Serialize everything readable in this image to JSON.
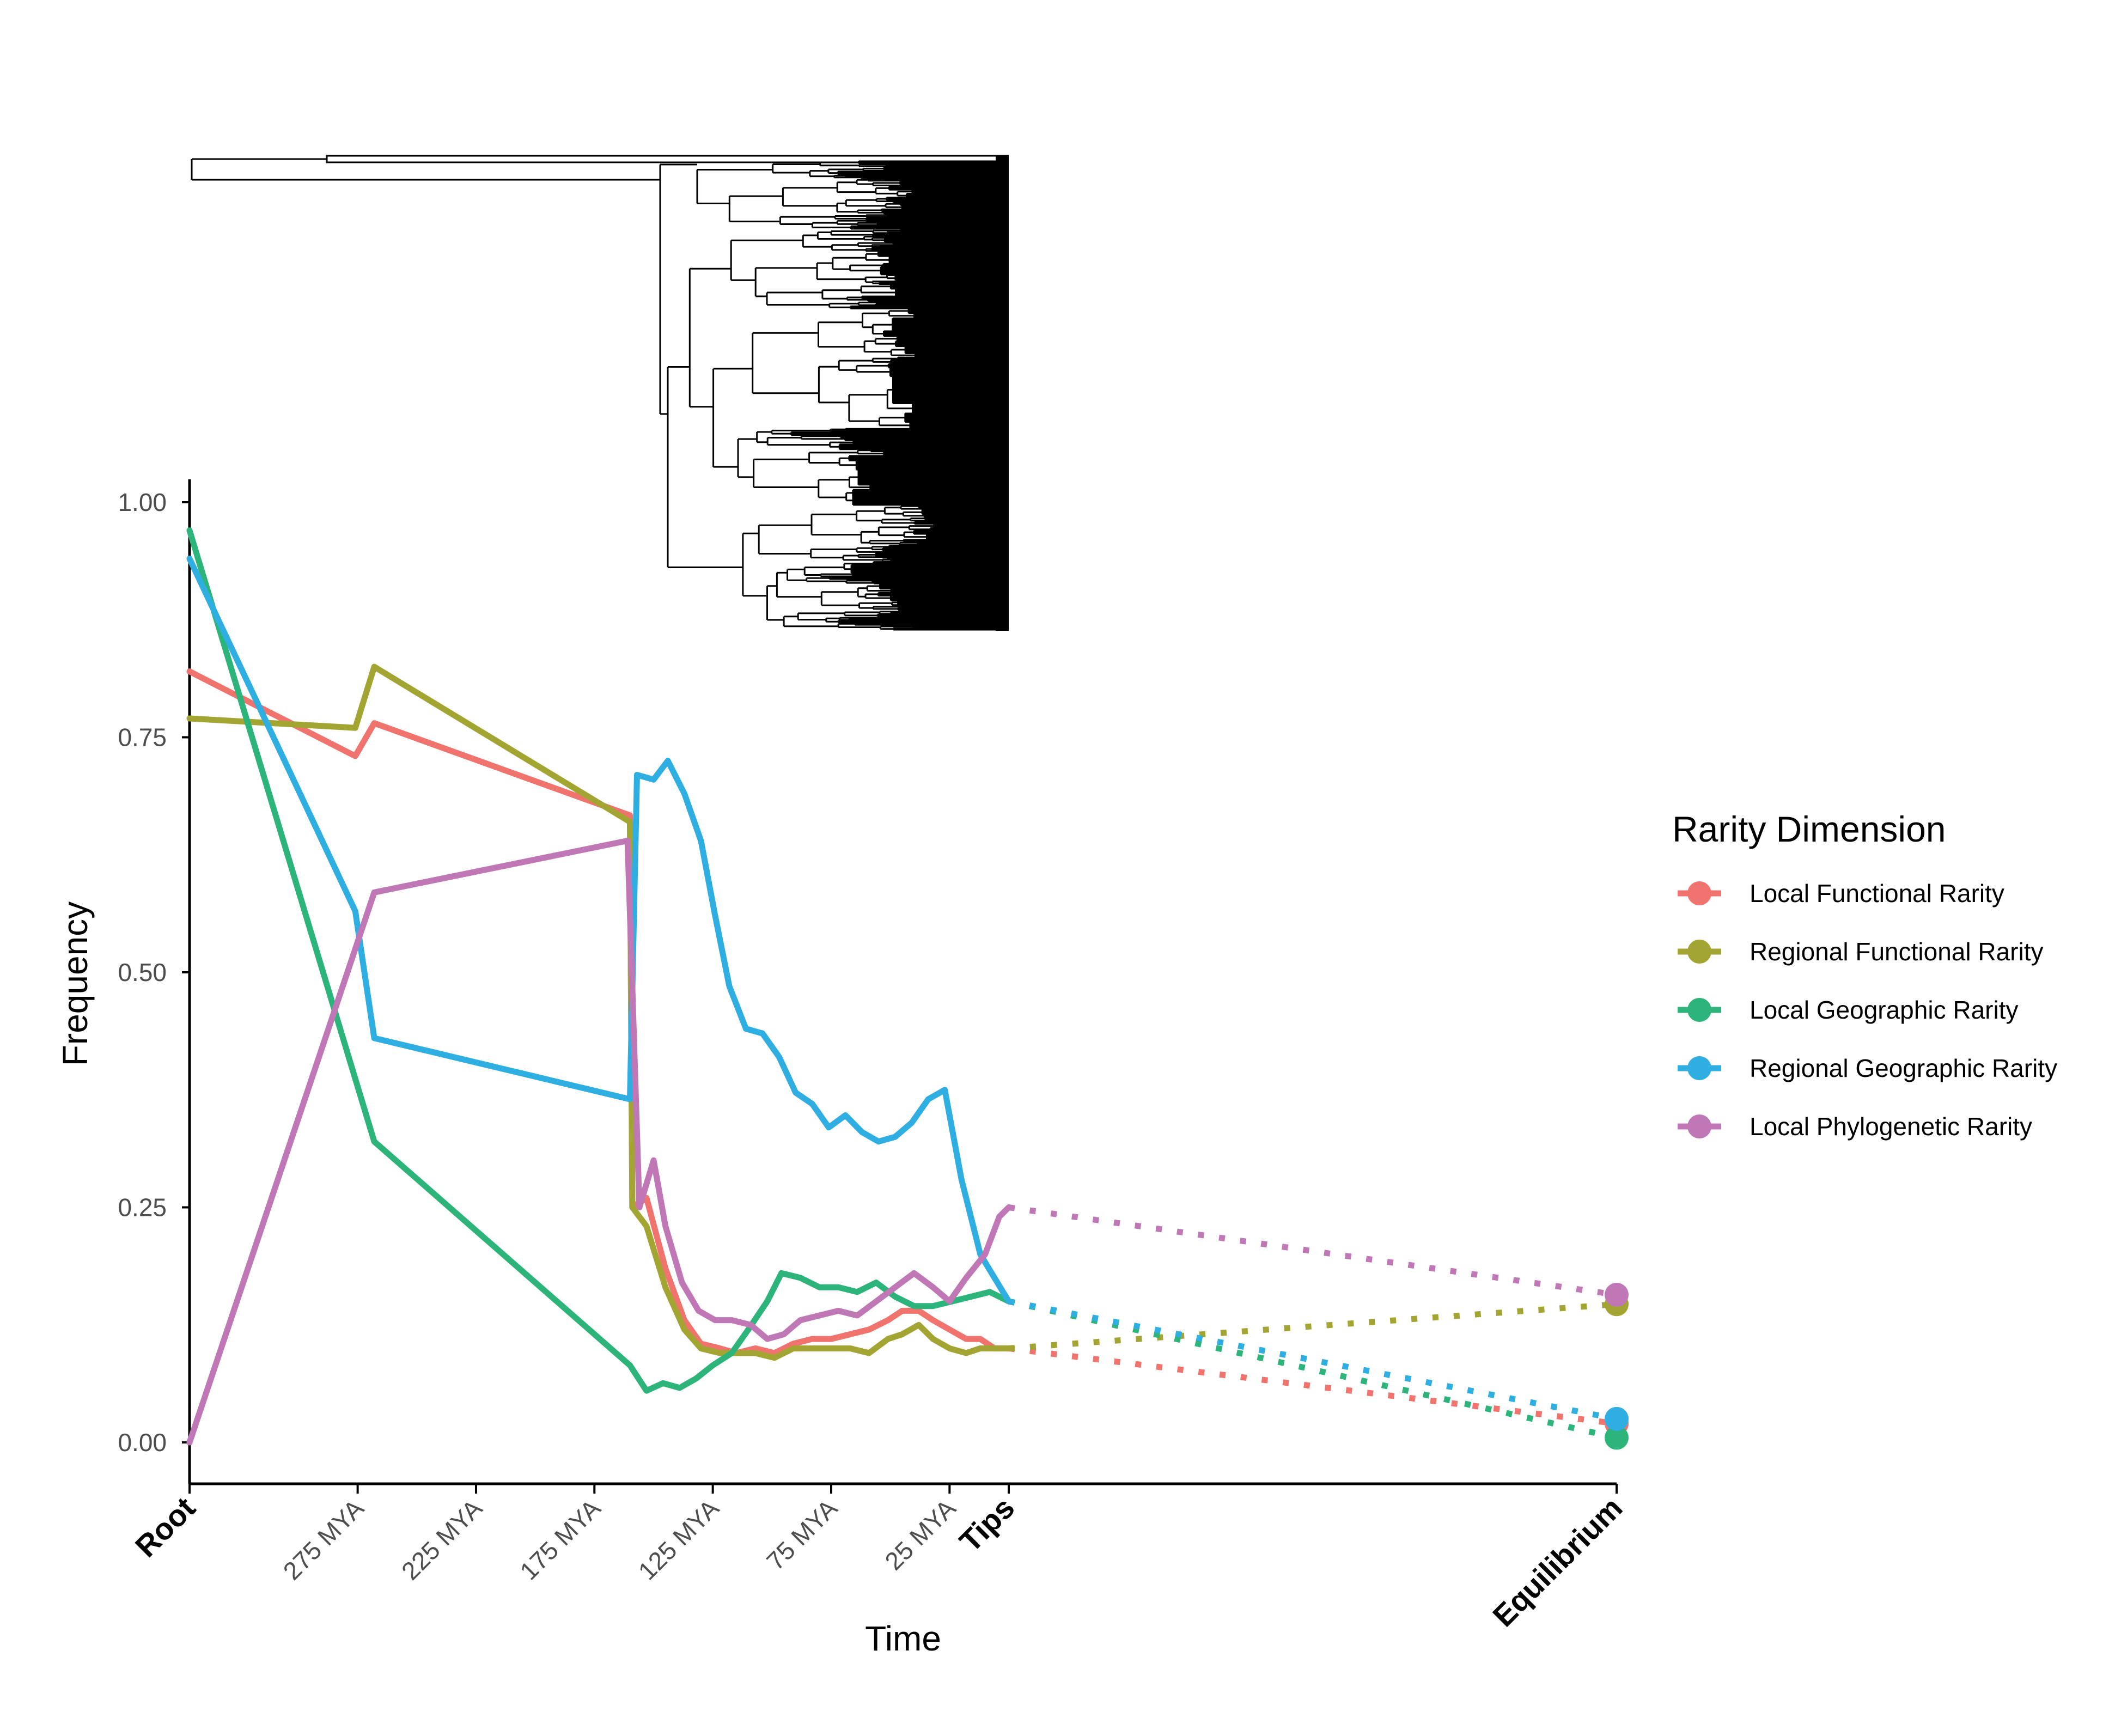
{
  "chart_data": {
    "type": "line",
    "xlabel": "Time",
    "ylabel": "Frequency",
    "ylim": [
      0,
      1
    ],
    "y_ticks": [
      "0.00",
      "0.25",
      "0.50",
      "0.75",
      "1.00"
    ],
    "x_ticks": [
      {
        "label": "Root",
        "mya": 346,
        "bold": true
      },
      {
        "label": "275 MYA",
        "mya": 275,
        "bold": false
      },
      {
        "label": "225 MYA",
        "mya": 225,
        "bold": false
      },
      {
        "label": "175 MYA",
        "mya": 175,
        "bold": false
      },
      {
        "label": "125 MYA",
        "mya": 125,
        "bold": false
      },
      {
        "label": "75 MYA",
        "mya": 75,
        "bold": false
      },
      {
        "label": "25 MYA",
        "mya": 25,
        "bold": false
      },
      {
        "label": "Tips",
        "mya": 0,
        "bold": true
      }
    ],
    "equilibrium_label": "Equilibrium",
    "legend": {
      "title": "Rarity Dimension",
      "placement": "right"
    },
    "series": [
      {
        "name": "Local Functional Rarity",
        "color": "#F0736E",
        "points": [
          [
            346,
            0.82
          ],
          [
            276,
            0.73
          ],
          [
            268,
            0.765
          ],
          [
            160,
            0.667
          ],
          [
            159,
            0.25
          ],
          [
            153,
            0.26
          ],
          [
            145,
            0.185
          ],
          [
            137,
            0.13
          ],
          [
            130,
            0.105
          ],
          [
            122,
            0.1
          ],
          [
            115,
            0.095
          ],
          [
            107,
            0.1
          ],
          [
            99,
            0.095
          ],
          [
            91,
            0.105
          ],
          [
            83,
            0.11
          ],
          [
            75,
            0.11
          ],
          [
            67,
            0.115
          ],
          [
            59,
            0.12
          ],
          [
            51,
            0.13
          ],
          [
            45,
            0.14
          ],
          [
            38,
            0.14
          ],
          [
            32,
            0.13
          ],
          [
            25,
            0.12
          ],
          [
            18,
            0.11
          ],
          [
            12,
            0.11
          ],
          [
            6,
            0.1
          ],
          [
            0,
            0.1
          ]
        ],
        "equilibrium": 0.02
      },
      {
        "name": "Regional Functional Rarity",
        "color": "#A3A533",
        "points": [
          [
            346,
            0.77
          ],
          [
            276,
            0.76
          ],
          [
            268,
            0.825
          ],
          [
            160,
            0.66
          ],
          [
            159,
            0.25
          ],
          [
            153,
            0.23
          ],
          [
            145,
            0.165
          ],
          [
            137,
            0.12
          ],
          [
            130,
            0.1
          ],
          [
            122,
            0.095
          ],
          [
            115,
            0.095
          ],
          [
            107,
            0.095
          ],
          [
            99,
            0.09
          ],
          [
            91,
            0.1
          ],
          [
            83,
            0.1
          ],
          [
            75,
            0.1
          ],
          [
            67,
            0.1
          ],
          [
            59,
            0.095
          ],
          [
            51,
            0.11
          ],
          [
            45,
            0.115
          ],
          [
            38,
            0.125
          ],
          [
            32,
            0.11
          ],
          [
            25,
            0.1
          ],
          [
            18,
            0.095
          ],
          [
            12,
            0.1
          ],
          [
            6,
            0.1
          ],
          [
            0,
            0.1
          ]
        ],
        "equilibrium": 0.147
      },
      {
        "name": "Local Geographic Rarity",
        "color": "#2DB47A",
        "points": [
          [
            346,
            0.97
          ],
          [
            268,
            0.32
          ],
          [
            160,
            0.082
          ],
          [
            153,
            0.055
          ],
          [
            146,
            0.063
          ],
          [
            139,
            0.058
          ],
          [
            132,
            0.068
          ],
          [
            125,
            0.082
          ],
          [
            117,
            0.095
          ],
          [
            110,
            0.12
          ],
          [
            102,
            0.15
          ],
          [
            96,
            0.18
          ],
          [
            88,
            0.175
          ],
          [
            80,
            0.165
          ],
          [
            72,
            0.165
          ],
          [
            64,
            0.16
          ],
          [
            56,
            0.17
          ],
          [
            48,
            0.155
          ],
          [
            40,
            0.145
          ],
          [
            32,
            0.145
          ],
          [
            24,
            0.15
          ],
          [
            16,
            0.155
          ],
          [
            8,
            0.16
          ],
          [
            0,
            0.15
          ]
        ],
        "equilibrium": 0.005
      },
      {
        "name": "Regional Geographic Rarity",
        "color": "#2FAEE2",
        "points": [
          [
            346,
            0.94
          ],
          [
            276,
            0.565
          ],
          [
            268,
            0.43
          ],
          [
            160,
            0.365
          ],
          [
            157,
            0.71
          ],
          [
            150,
            0.705
          ],
          [
            144,
            0.725
          ],
          [
            137,
            0.69
          ],
          [
            130,
            0.64
          ],
          [
            124,
            0.56
          ],
          [
            118,
            0.485
          ],
          [
            111,
            0.44
          ],
          [
            104,
            0.435
          ],
          [
            97,
            0.41
          ],
          [
            90,
            0.372
          ],
          [
            83,
            0.36
          ],
          [
            76,
            0.335
          ],
          [
            69,
            0.348
          ],
          [
            62,
            0.33
          ],
          [
            55,
            0.32
          ],
          [
            48,
            0.325
          ],
          [
            41,
            0.34
          ],
          [
            34,
            0.365
          ],
          [
            27,
            0.375
          ],
          [
            20,
            0.28
          ],
          [
            12,
            0.2
          ],
          [
            0,
            0.15
          ]
        ],
        "equilibrium": 0.025
      },
      {
        "name": "Local Phylogenetic Rarity",
        "color": "#C077B6",
        "points": [
          [
            346,
            0.0
          ],
          [
            268,
            0.585
          ],
          [
            161,
            0.64
          ],
          [
            156,
            0.25
          ],
          [
            150,
            0.3
          ],
          [
            145,
            0.23
          ],
          [
            138,
            0.17
          ],
          [
            131,
            0.14
          ],
          [
            124,
            0.13
          ],
          [
            117,
            0.13
          ],
          [
            109,
            0.125
          ],
          [
            102,
            0.11
          ],
          [
            95,
            0.115
          ],
          [
            88,
            0.13
          ],
          [
            80,
            0.135
          ],
          [
            72,
            0.14
          ],
          [
            64,
            0.135
          ],
          [
            56,
            0.15
          ],
          [
            48,
            0.165
          ],
          [
            40,
            0.18
          ],
          [
            32,
            0.165
          ],
          [
            25,
            0.15
          ],
          [
            18,
            0.175
          ],
          [
            10,
            0.2
          ],
          [
            4,
            0.24
          ],
          [
            0,
            0.25
          ]
        ],
        "equilibrium": 0.157
      }
    ]
  }
}
